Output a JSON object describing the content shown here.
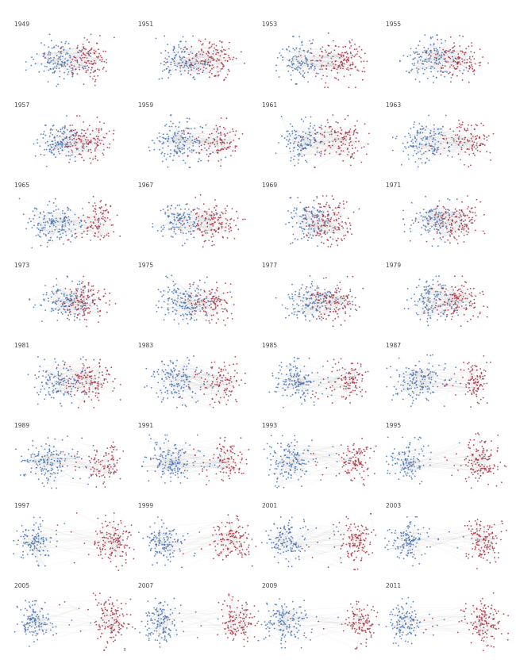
{
  "colors": {
    "left_party": "#3f6fb1",
    "right_party": "#a62a3b",
    "edge": "#555555"
  },
  "panels": [
    {
      "year": "1949",
      "left_weight": 0.62,
      "separation": 0.25
    },
    {
      "year": "1951",
      "left_weight": 0.45,
      "separation": 0.28
    },
    {
      "year": "1953",
      "left_weight": 0.4,
      "separation": 0.35
    },
    {
      "year": "1955",
      "left_weight": 0.55,
      "separation": 0.22
    },
    {
      "year": "1957",
      "left_weight": 0.55,
      "separation": 0.25
    },
    {
      "year": "1959",
      "left_weight": 0.65,
      "separation": 0.38
    },
    {
      "year": "1961",
      "left_weight": 0.5,
      "separation": 0.35
    },
    {
      "year": "1963",
      "left_weight": 0.6,
      "separation": 0.45
    },
    {
      "year": "1965",
      "left_weight": 0.68,
      "separation": 0.45
    },
    {
      "year": "1967",
      "left_weight": 0.45,
      "separation": 0.3
    },
    {
      "year": "1969",
      "left_weight": 0.5,
      "separation": 0.15
    },
    {
      "year": "1971",
      "left_weight": 0.5,
      "separation": 0.15
    },
    {
      "year": "1973",
      "left_weight": 0.55,
      "separation": 0.18
    },
    {
      "year": "1975",
      "left_weight": 0.62,
      "separation": 0.25
    },
    {
      "year": "1977",
      "left_weight": 0.58,
      "separation": 0.2
    },
    {
      "year": "1979",
      "left_weight": 0.55,
      "separation": 0.22
    },
    {
      "year": "1981",
      "left_weight": 0.48,
      "separation": 0.3
    },
    {
      "year": "1983",
      "left_weight": 0.62,
      "separation": 0.45
    },
    {
      "year": "1985",
      "left_weight": 0.62,
      "separation": 0.55
    },
    {
      "year": "1987",
      "left_weight": 0.68,
      "separation": 0.62
    },
    {
      "year": "1989",
      "left_weight": 0.68,
      "separation": 0.6
    },
    {
      "year": "1991",
      "left_weight": 0.68,
      "separation": 0.62
    },
    {
      "year": "1993",
      "left_weight": 0.62,
      "separation": 0.72
    },
    {
      "year": "1995",
      "left_weight": 0.45,
      "separation": 0.8
    },
    {
      "year": "1997",
      "left_weight": 0.45,
      "separation": 0.85
    },
    {
      "year": "1999",
      "left_weight": 0.48,
      "separation": 0.78
    },
    {
      "year": "2001",
      "left_weight": 0.5,
      "separation": 0.8
    },
    {
      "year": "2003",
      "left_weight": 0.5,
      "separation": 0.85
    },
    {
      "year": "2005",
      "left_weight": 0.48,
      "separation": 0.88
    },
    {
      "year": "2007",
      "left_weight": 0.55,
      "separation": 0.88
    },
    {
      "year": "2009",
      "left_weight": 0.62,
      "separation": 0.85
    },
    {
      "year": "2011",
      "left_weight": 0.45,
      "separation": 0.88
    }
  ]
}
